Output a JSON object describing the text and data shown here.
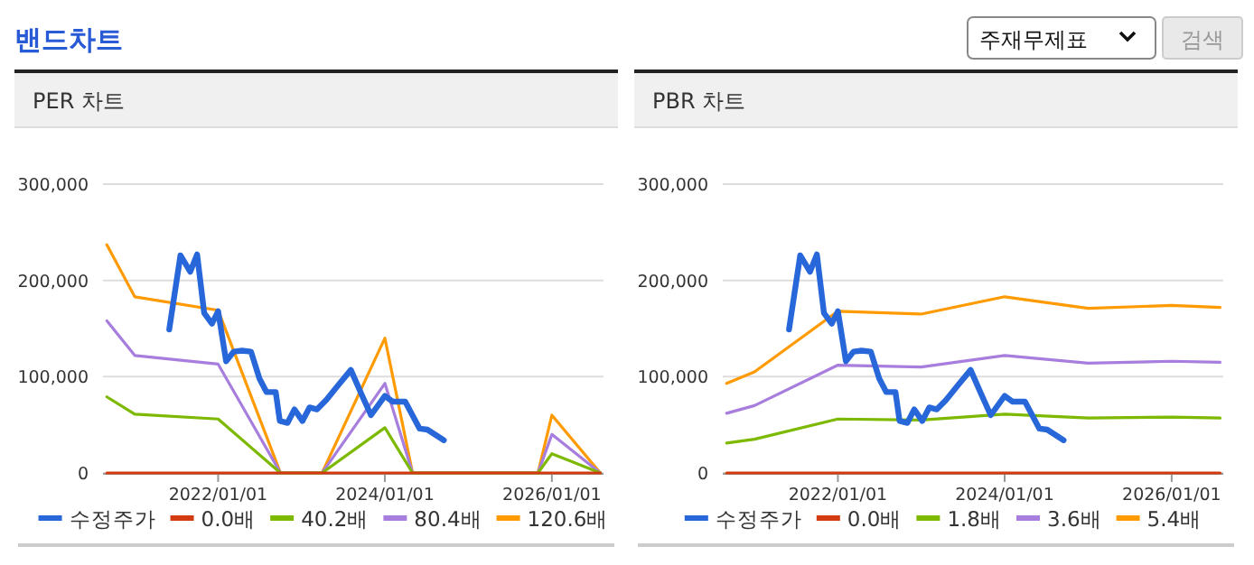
{
  "chart_data": [
    {
      "type": "other",
      "title": "밴드차트",
      "annotations": [
        "주재무제표",
        "검색"
      ]
    },
    {
      "type": "line",
      "title": "PER 차트",
      "xlim": [
        "2020-08-15",
        "2026-08-15"
      ],
      "ylim": [
        0,
        300000
      ],
      "xticks": [
        {
          "value": "2022-01-01",
          "label": "2022/01/01"
        },
        {
          "value": "2024-01-01",
          "label": "2024/01/01"
        },
        {
          "value": "2026-01-01",
          "label": "2026/01/01"
        }
      ],
      "yticks": [
        0,
        {
          "value": 100000,
          "label": "100,000"
        },
        {
          "value": 200000,
          "label": "200,000"
        },
        {
          "value": 300000,
          "label": "300,000"
        }
      ],
      "grid": "y",
      "legend": "bottom",
      "series": [
        {
          "name": "수정주가",
          "color": "#2767d9",
          "x": [
            "2021-06-01",
            "2021-07-20",
            "2021-09-01",
            "2021-10-01",
            "2021-11-01",
            "2021-12-05",
            "2022-01-01",
            "2022-02-05",
            "2022-03-10",
            "2022-04-15",
            "2022-05-25",
            "2022-07-01",
            "2022-08-01",
            "2022-09-10",
            "2022-09-28",
            "2022-11-01",
            "2022-12-01",
            "2023-01-05",
            "2023-02-05",
            "2023-03-10",
            "2023-04-20",
            "2023-06-10",
            "2023-08-05",
            "2023-09-20",
            "2023-11-01",
            "2024-01-01",
            "2024-02-05",
            "2024-03-30",
            "2024-06-01",
            "2024-07-05",
            "2024-09-15"
          ],
          "values": [
            149000,
            226000,
            209000,
            227000,
            166000,
            155000,
            168000,
            116000,
            126000,
            127000,
            126000,
            98000,
            84000,
            84000,
            54000,
            52000,
            66000,
            54000,
            68000,
            66000,
            76000,
            91000,
            107000,
            82000,
            60000,
            80000,
            74000,
            74000,
            46000,
            45000,
            34000
          ]
        },
        {
          "name": "0.0배",
          "color": "#d23a10",
          "x": [
            "2020-09-01",
            "2021-01-01",
            "2022-01-01",
            "2022-10-01",
            "2023-04-01",
            "2024-01-01",
            "2024-05-01",
            "2025-11-01",
            "2026-01-01",
            "2026-08-01"
          ],
          "values": [
            0,
            0,
            0,
            0,
            0,
            0,
            0,
            0,
            0,
            0
          ]
        },
        {
          "name": "40.2배",
          "color": "#7cb900",
          "x": [
            "2020-09-01",
            "2021-01-01",
            "2022-01-01",
            "2022-10-01",
            "2023-04-01",
            "2024-01-01",
            "2024-05-01",
            "2025-11-01",
            "2026-01-01",
            "2026-08-01"
          ],
          "values": [
            79000,
            61000,
            56000,
            0,
            0,
            47000,
            0,
            0,
            20000,
            0
          ]
        },
        {
          "name": "80.4배",
          "color": "#a77ddd",
          "x": [
            "2020-09-01",
            "2021-01-01",
            "2022-01-01",
            "2022-10-01",
            "2023-04-01",
            "2024-01-01",
            "2024-05-01",
            "2025-11-01",
            "2026-01-01",
            "2026-08-01"
          ],
          "values": [
            158000,
            122000,
            113000,
            0,
            0,
            93000,
            0,
            0,
            40000,
            0
          ]
        },
        {
          "name": "120.6배",
          "color": "#ff9a00",
          "x": [
            "2020-09-01",
            "2021-01-01",
            "2022-01-01",
            "2022-10-01",
            "2023-04-01",
            "2024-01-01",
            "2024-05-01",
            "2025-11-01",
            "2026-01-01",
            "2026-08-01"
          ],
          "values": [
            237000,
            183000,
            169000,
            0,
            0,
            140000,
            0,
            0,
            60000,
            0
          ]
        }
      ]
    },
    {
      "type": "line",
      "title": "PBR 차트",
      "xlim": [
        "2020-08-15",
        "2026-08-15"
      ],
      "ylim": [
        0,
        300000
      ],
      "xticks": [
        {
          "value": "2022-01-01",
          "label": "2022/01/01"
        },
        {
          "value": "2024-01-01",
          "label": "2024/01/01"
        },
        {
          "value": "2026-01-01",
          "label": "2026/01/01"
        }
      ],
      "yticks": [
        0,
        {
          "value": 100000,
          "label": "100,000"
        },
        {
          "value": 200000,
          "label": "200,000"
        },
        {
          "value": 300000,
          "label": "300,000"
        }
      ],
      "grid": "y",
      "legend": "bottom",
      "series": [
        {
          "name": "수정주가",
          "color": "#2767d9",
          "x": [
            "2021-06-01",
            "2021-07-20",
            "2021-09-01",
            "2021-10-01",
            "2021-11-01",
            "2021-12-05",
            "2022-01-01",
            "2022-02-05",
            "2022-03-10",
            "2022-04-15",
            "2022-05-25",
            "2022-07-01",
            "2022-08-01",
            "2022-09-10",
            "2022-09-28",
            "2022-11-01",
            "2022-12-01",
            "2023-01-05",
            "2023-02-05",
            "2023-03-10",
            "2023-04-20",
            "2023-06-10",
            "2023-08-05",
            "2023-09-20",
            "2023-11-01",
            "2024-01-01",
            "2024-02-05",
            "2024-03-30",
            "2024-06-01",
            "2024-07-05",
            "2024-09-15"
          ],
          "values": [
            149000,
            226000,
            209000,
            227000,
            166000,
            155000,
            168000,
            116000,
            126000,
            127000,
            126000,
            98000,
            84000,
            84000,
            54000,
            52000,
            66000,
            54000,
            68000,
            66000,
            76000,
            91000,
            107000,
            82000,
            60000,
            80000,
            74000,
            74000,
            46000,
            45000,
            34000
          ]
        },
        {
          "name": "0.0배",
          "color": "#d23a10",
          "x": [
            "2020-09-01",
            "2021-01-01",
            "2022-01-01",
            "2023-01-01",
            "2024-01-01",
            "2025-01-01",
            "2026-01-01",
            "2026-08-01"
          ],
          "values": [
            0,
            0,
            0,
            0,
            0,
            0,
            0,
            0
          ]
        },
        {
          "name": "1.8배",
          "color": "#7cb900",
          "x": [
            "2020-09-01",
            "2021-01-01",
            "2022-01-01",
            "2023-01-01",
            "2024-01-01",
            "2025-01-01",
            "2026-01-01",
            "2026-08-01"
          ],
          "values": [
            31000,
            35000,
            56000,
            55000,
            61000,
            57000,
            58000,
            57000
          ]
        },
        {
          "name": "3.6배",
          "color": "#a77ddd",
          "x": [
            "2020-09-01",
            "2021-01-01",
            "2022-01-01",
            "2023-01-01",
            "2024-01-01",
            "2025-01-01",
            "2026-01-01",
            "2026-08-01"
          ],
          "values": [
            62000,
            70000,
            112000,
            110000,
            122000,
            114000,
            116000,
            115000
          ]
        },
        {
          "name": "5.4배",
          "color": "#ff9a00",
          "x": [
            "2020-09-01",
            "2021-01-01",
            "2022-01-01",
            "2023-01-01",
            "2024-01-01",
            "2025-01-01",
            "2026-01-01",
            "2026-08-01"
          ],
          "values": [
            93000,
            105000,
            168000,
            165000,
            183000,
            171000,
            174000,
            172000
          ]
        }
      ]
    }
  ]
}
